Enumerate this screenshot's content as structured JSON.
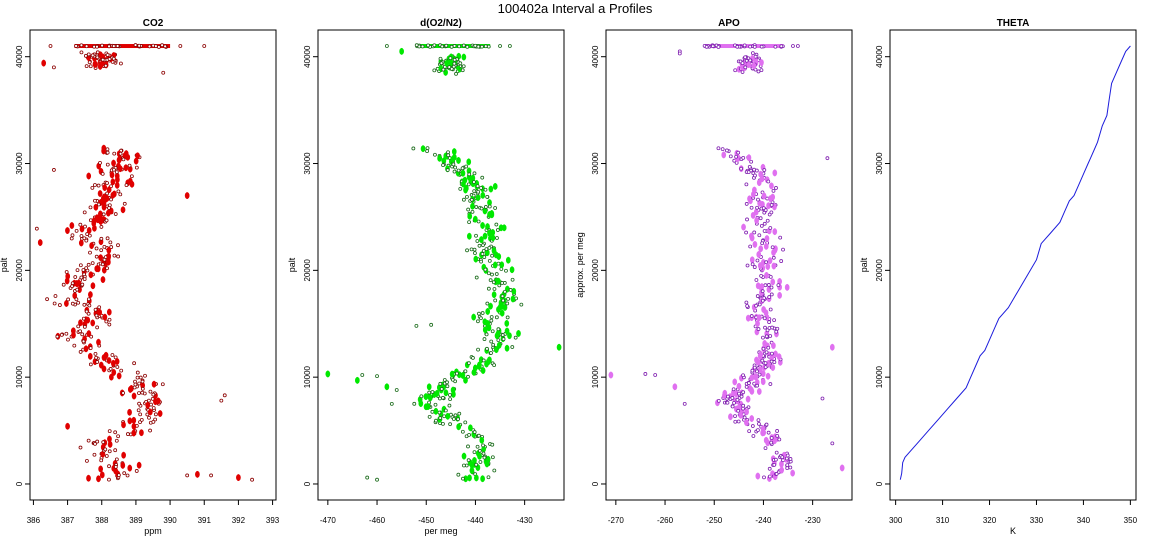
{
  "figure": {
    "title": "100402a   Interval a Profiles"
  },
  "chart_data": [
    {
      "type": "scatter",
      "title": "CO2",
      "xlabel": "ppm",
      "ylabel": "palt",
      "xlim": [
        385.9,
        393.1
      ],
      "ylim": [
        -1500,
        42500
      ],
      "xticks": [
        "386",
        "387",
        "388",
        "389",
        "390",
        "391",
        "392",
        "393"
      ],
      "yticks": [
        "0",
        "10000",
        "20000",
        "30000",
        "40000"
      ],
      "colors": {
        "primary": "#e00000",
        "secondary": "#8b0000"
      },
      "profile": [
        [
          388.2,
          400
        ],
        [
          388.5,
          1500
        ],
        [
          388.2,
          2600
        ],
        [
          388.0,
          3800
        ],
        [
          388.6,
          4600
        ],
        [
          389.0,
          5600
        ],
        [
          389.3,
          6600
        ],
        [
          389.5,
          7800
        ],
        [
          389.2,
          8800
        ],
        [
          388.8,
          9800
        ],
        [
          388.4,
          10800
        ],
        [
          388.0,
          11800
        ],
        [
          387.5,
          12800
        ],
        [
          387.2,
          13800
        ],
        [
          387.6,
          14800
        ],
        [
          388.0,
          15800
        ],
        [
          387.3,
          16800
        ],
        [
          387.1,
          17800
        ],
        [
          387.4,
          18800
        ],
        [
          387.7,
          19800
        ],
        [
          387.9,
          20800
        ],
        [
          388.1,
          21800
        ],
        [
          387.8,
          22800
        ],
        [
          387.6,
          23800
        ],
        [
          388.0,
          24800
        ],
        [
          388.2,
          25800
        ],
        [
          388.1,
          26800
        ],
        [
          388.4,
          27800
        ],
        [
          388.3,
          28800
        ],
        [
          388.6,
          29800
        ],
        [
          388.5,
          30800
        ],
        [
          388.2,
          31500
        ]
      ],
      "top": [
        388.0,
        39600
      ],
      "ceiling": {
        "y": 41000,
        "range": [
          387.2,
          390.0
        ]
      },
      "ceiling_extra": [
        [
          386.5,
          41000
        ],
        [
          390.3,
          41000
        ],
        [
          391.0,
          41000
        ]
      ],
      "outliers": [
        [
          392.0,
          600
        ],
        [
          392.4,
          400
        ],
        [
          391.2,
          800
        ],
        [
          390.8,
          900
        ],
        [
          390.5,
          800
        ],
        [
          386.1,
          23900
        ],
        [
          386.2,
          22600
        ],
        [
          386.4,
          17300
        ],
        [
          386.6,
          29400
        ],
        [
          390.5,
          27000
        ],
        [
          391.5,
          7800
        ],
        [
          391.6,
          8300
        ],
        [
          386.3,
          39400
        ],
        [
          386.6,
          39000
        ],
        [
          389.8,
          38500
        ],
        [
          387.0,
          5400
        ],
        [
          386.7,
          13800
        ]
      ],
      "spread": [
        0.55,
        0.35
      ]
    },
    {
      "type": "scatter",
      "title": "d(O2/N2)",
      "xlabel": "per meg",
      "ylabel": "palt",
      "xlim": [
        -472,
        -422
      ],
      "ylim": [
        -1500,
        42500
      ],
      "xticks": [
        "-470",
        "-460",
        "-450",
        "-440",
        "-430"
      ],
      "yticks": [
        "0",
        "10000",
        "20000",
        "30000",
        "40000"
      ],
      "colors": {
        "primary": "#00e800",
        "secondary": "#1a6b1a"
      },
      "profile": [
        [
          -441,
          400
        ],
        [
          -440,
          1500
        ],
        [
          -439,
          2600
        ],
        [
          -438,
          3800
        ],
        [
          -440,
          4600
        ],
        [
          -445,
          5600
        ],
        [
          -447,
          6600
        ],
        [
          -449,
          7800
        ],
        [
          -447,
          8800
        ],
        [
          -444,
          9800
        ],
        [
          -440,
          10800
        ],
        [
          -438,
          11800
        ],
        [
          -436,
          12800
        ],
        [
          -435,
          13800
        ],
        [
          -436,
          14800
        ],
        [
          -437,
          15800
        ],
        [
          -435,
          16800
        ],
        [
          -434,
          17800
        ],
        [
          -435,
          18800
        ],
        [
          -436,
          19800
        ],
        [
          -437,
          20800
        ],
        [
          -438,
          21800
        ],
        [
          -438,
          22800
        ],
        [
          -437,
          23800
        ],
        [
          -438,
          24800
        ],
        [
          -439,
          25800
        ],
        [
          -439,
          26800
        ],
        [
          -440,
          27800
        ],
        [
          -442,
          28800
        ],
        [
          -444,
          29800
        ],
        [
          -447,
          30800
        ],
        [
          -450,
          31500
        ]
      ],
      "top": [
        -445,
        39300
      ],
      "ceiling": {
        "y": 41000,
        "range": [
          -452,
          -437
        ]
      },
      "ceiling_extra": [
        [
          -458,
          41000
        ],
        [
          -435,
          41000
        ],
        [
          -433,
          41000
        ]
      ],
      "outliers": [
        [
          -470,
          10300
        ],
        [
          -463,
          10200
        ],
        [
          -460,
          10100
        ],
        [
          -458,
          9100
        ],
        [
          -456,
          8800
        ],
        [
          -457,
          7500
        ],
        [
          -423,
          12800
        ],
        [
          -460,
          400
        ],
        [
          -462,
          600
        ],
        [
          -455,
          40500
        ],
        [
          -449,
          14900
        ],
        [
          -452,
          14800
        ],
        [
          -464,
          9700
        ]
      ],
      "spread": [
        3.0,
        0.35
      ]
    },
    {
      "type": "scatter",
      "title": "APO",
      "xlabel": "",
      "ylabel": "approx. per meg",
      "xlim": [
        -272,
        -222
      ],
      "ylim": [
        -1500,
        42500
      ],
      "xticks": [
        "-270",
        "-260",
        "-250",
        "-240",
        "-230"
      ],
      "yticks": [
        "0",
        "10000",
        "20000",
        "30000",
        "40000"
      ],
      "colors": {
        "primary": "#e070f0",
        "secondary": "#8020b0"
      },
      "profile": [
        [
          -238,
          400
        ],
        [
          -237,
          1500
        ],
        [
          -236,
          2600
        ],
        [
          -237,
          3800
        ],
        [
          -239,
          4600
        ],
        [
          -243,
          5600
        ],
        [
          -245,
          6600
        ],
        [
          -246,
          7800
        ],
        [
          -244,
          8800
        ],
        [
          -242,
          9800
        ],
        [
          -240,
          10800
        ],
        [
          -239,
          11800
        ],
        [
          -238,
          12800
        ],
        [
          -239,
          13800
        ],
        [
          -240,
          14800
        ],
        [
          -241,
          15800
        ],
        [
          -240,
          16800
        ],
        [
          -239,
          17800
        ],
        [
          -239,
          18800
        ],
        [
          -240,
          19800
        ],
        [
          -240,
          20800
        ],
        [
          -239,
          21800
        ],
        [
          -240,
          22800
        ],
        [
          -241,
          23800
        ],
        [
          -240,
          24800
        ],
        [
          -240,
          25800
        ],
        [
          -240,
          26800
        ],
        [
          -240,
          27800
        ],
        [
          -241,
          28800
        ],
        [
          -243,
          29800
        ],
        [
          -246,
          30800
        ],
        [
          -249,
          31500
        ]
      ],
      "top": [
        -243,
        39300
      ],
      "ceiling": {
        "y": 41000,
        "range": [
          -252,
          -236
        ]
      },
      "ceiling_extra": [
        [
          -234,
          41000
        ],
        [
          -233,
          41000
        ],
        [
          -257,
          40500
        ]
      ],
      "outliers": [
        [
          -271,
          10200
        ],
        [
          -264,
          10300
        ],
        [
          -262,
          10200
        ],
        [
          -258,
          9100
        ],
        [
          -256,
          7500
        ],
        [
          -228,
          8000
        ],
        [
          -226,
          12800
        ],
        [
          -227,
          30500
        ],
        [
          -257,
          40300
        ],
        [
          -224,
          1500
        ],
        [
          -226,
          3800
        ]
      ],
      "spread": [
        2.8,
        0.35
      ]
    },
    {
      "type": "line",
      "title": "THETA",
      "xlabel": "K",
      "ylabel": "palt",
      "xlim": [
        298.8,
        351.2
      ],
      "ylim": [
        -1500,
        42500
      ],
      "xticks": [
        "300",
        "310",
        "320",
        "330",
        "340",
        "350"
      ],
      "yticks": [
        "0",
        "10000",
        "20000",
        "30000",
        "40000"
      ],
      "colors": {
        "line": "#1c1cdc"
      },
      "x": [
        301.0,
        301.3,
        301.5,
        302.0,
        303.0,
        305.0,
        307.0,
        309.0,
        311.0,
        313.0,
        315.0,
        316.0,
        317.0,
        318.0,
        319.0,
        320.0,
        321.0,
        322.0,
        324.0,
        326.0,
        328.0,
        330.0,
        331.0,
        333.0,
        335.0,
        336.0,
        337.0,
        338.0,
        339.0,
        340.0,
        341.0,
        341.5,
        342.5,
        343.0,
        344.0,
        345.0,
        345.5,
        346.0,
        347.0,
        348.0,
        349.0,
        350.0
      ],
      "y": [
        400,
        1000,
        2000,
        2500,
        3000,
        4000,
        5000,
        6000,
        7000,
        8000,
        9000,
        10000,
        11000,
        12000,
        12500,
        13500,
        14500,
        15500,
        16500,
        18000,
        19500,
        21000,
        22500,
        23500,
        24500,
        25500,
        26500,
        27000,
        28000,
        29000,
        30000,
        30500,
        31500,
        32000,
        33500,
        34500,
        36000,
        37500,
        38500,
        39500,
        40500,
        41000
      ]
    }
  ]
}
